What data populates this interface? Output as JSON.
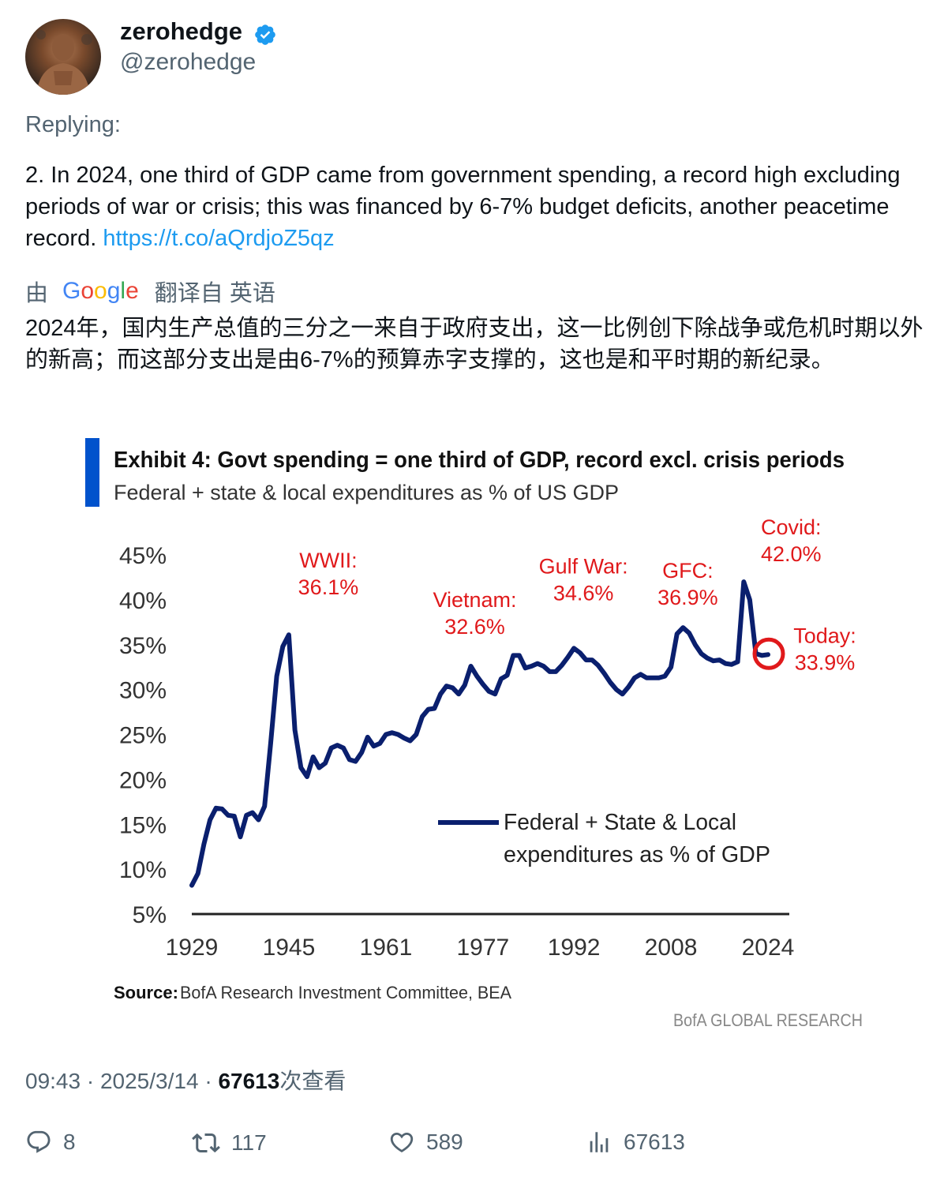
{
  "user": {
    "display_name": "zerohedge",
    "handle": "@zerohedge"
  },
  "tweet": {
    "replying_label": "Replying:",
    "text": "2. In 2024, one third of GDP came from government spending, a record high excluding periods of war or crisis; this was financed by 6-7% budget deficits, another peacetime record. ",
    "link": "https://t.co/aQrdjoZ5qz",
    "translate_prefix": "由",
    "translate_brand": "Google",
    "translate_suffix": "翻译自 英语",
    "translated_text": "2024年，国内生产总值的三分之一来自于政府支出，这一比例创下除战争或危机时期以外的新高；而这部分支出是由6-7%的预算赤字支撑的，这也是和平时期的新纪录。"
  },
  "meta": {
    "time": "09:43",
    "date": "2025/3/14",
    "views": "67613",
    "views_label": "次查看"
  },
  "actions": {
    "replies": "8",
    "retweets": "117",
    "likes": "589",
    "views": "67613"
  },
  "colors": {
    "link": "#1d9bf0",
    "accent_bar": "#0052cc",
    "line": "#0a1f6e",
    "annotation": "#e0191b"
  },
  "chart_data": {
    "type": "line",
    "title": "Exhibit 4: Govt spending = one third of GDP, record excl. crisis periods",
    "subtitle": "Federal + state & local expenditures as % of US GDP",
    "ylim": [
      5,
      45
    ],
    "y_ticks": [
      "45%",
      "40%",
      "35%",
      "30%",
      "25%",
      "20%",
      "15%",
      "10%",
      "5%"
    ],
    "x_ticks": [
      "1929",
      "1945",
      "1961",
      "1977",
      "1992",
      "2008",
      "2024"
    ],
    "series": [
      {
        "name": "Federal + State & Local expenditures as % of GDP",
        "points": [
          [
            1929,
            8.2
          ],
          [
            1930,
            9.5
          ],
          [
            1931,
            12.8
          ],
          [
            1932,
            15.5
          ],
          [
            1933,
            16.8
          ],
          [
            1934,
            16.7
          ],
          [
            1935,
            16.0
          ],
          [
            1936,
            15.9
          ],
          [
            1937,
            13.6
          ],
          [
            1938,
            16.0
          ],
          [
            1939,
            16.3
          ],
          [
            1940,
            15.5
          ],
          [
            1941,
            17.0
          ],
          [
            1942,
            24.0
          ],
          [
            1943,
            31.5
          ],
          [
            1944,
            34.8
          ],
          [
            1945,
            36.1
          ],
          [
            1946,
            25.5
          ],
          [
            1947,
            21.3
          ],
          [
            1948,
            20.3
          ],
          [
            1949,
            22.5
          ],
          [
            1950,
            21.3
          ],
          [
            1951,
            21.8
          ],
          [
            1952,
            23.5
          ],
          [
            1953,
            23.8
          ],
          [
            1954,
            23.5
          ],
          [
            1955,
            22.2
          ],
          [
            1956,
            22.0
          ],
          [
            1957,
            23.0
          ],
          [
            1958,
            24.7
          ],
          [
            1959,
            23.7
          ],
          [
            1960,
            24.0
          ],
          [
            1961,
            25.0
          ],
          [
            1962,
            25.2
          ],
          [
            1963,
            25.0
          ],
          [
            1964,
            24.6
          ],
          [
            1965,
            24.3
          ],
          [
            1966,
            25.0
          ],
          [
            1967,
            27.0
          ],
          [
            1968,
            27.8
          ],
          [
            1969,
            27.9
          ],
          [
            1970,
            29.5
          ],
          [
            1971,
            30.4
          ],
          [
            1972,
            30.2
          ],
          [
            1973,
            29.5
          ],
          [
            1974,
            30.5
          ],
          [
            1975,
            32.6
          ],
          [
            1976,
            31.5
          ],
          [
            1977,
            30.6
          ],
          [
            1978,
            29.8
          ],
          [
            1979,
            29.5
          ],
          [
            1980,
            31.2
          ],
          [
            1981,
            31.6
          ],
          [
            1982,
            33.8
          ],
          [
            1983,
            33.8
          ],
          [
            1984,
            32.4
          ],
          [
            1985,
            32.6
          ],
          [
            1986,
            32.9
          ],
          [
            1987,
            32.6
          ],
          [
            1988,
            32.0
          ],
          [
            1989,
            32.0
          ],
          [
            1990,
            32.7
          ],
          [
            1991,
            33.6
          ],
          [
            1992,
            34.6
          ],
          [
            1993,
            34.1
          ],
          [
            1994,
            33.3
          ],
          [
            1995,
            33.3
          ],
          [
            1996,
            32.7
          ],
          [
            1997,
            31.8
          ],
          [
            1998,
            30.8
          ],
          [
            1999,
            30.0
          ],
          [
            2000,
            29.5
          ],
          [
            2001,
            30.3
          ],
          [
            2002,
            31.3
          ],
          [
            2003,
            31.7
          ],
          [
            2004,
            31.3
          ],
          [
            2005,
            31.3
          ],
          [
            2006,
            31.3
          ],
          [
            2007,
            31.5
          ],
          [
            2008,
            32.5
          ],
          [
            2009,
            36.2
          ],
          [
            2010,
            36.9
          ],
          [
            2011,
            36.3
          ],
          [
            2012,
            35.0
          ],
          [
            2013,
            34.0
          ],
          [
            2014,
            33.5
          ],
          [
            2015,
            33.2
          ],
          [
            2016,
            33.3
          ],
          [
            2017,
            32.9
          ],
          [
            2018,
            32.8
          ],
          [
            2019,
            33.1
          ],
          [
            2020,
            42.0
          ],
          [
            2021,
            40.0
          ],
          [
            2022,
            34.0
          ],
          [
            2023,
            33.8
          ],
          [
            2024,
            33.9
          ]
        ]
      }
    ],
    "annotations": [
      {
        "label": "WWII:",
        "value": "36.1%",
        "year": 1945,
        "y": 36.1
      },
      {
        "label": "Vietnam:",
        "value": "32.6%",
        "year": 1975,
        "y": 32.6
      },
      {
        "label": "Gulf War:",
        "value": "34.6%",
        "year": 1992,
        "y": 34.6
      },
      {
        "label": "GFC:",
        "value": "36.9%",
        "year": 2010,
        "y": 36.9
      },
      {
        "label": "Covid:",
        "value": "42.0%",
        "year": 2020,
        "y": 42.0
      },
      {
        "label": "Today:",
        "value": "33.9%",
        "year": 2024,
        "y": 33.9
      }
    ],
    "legend": {
      "label_line1": "Federal + State & Local",
      "label_line2": "expenditures as % of GDP",
      "placement": "lower-right"
    },
    "source_label": "Source:",
    "source_text": "BofA Research Investment Committee, BEA",
    "brand": "BofA GLOBAL RESEARCH",
    "grid": false
  }
}
